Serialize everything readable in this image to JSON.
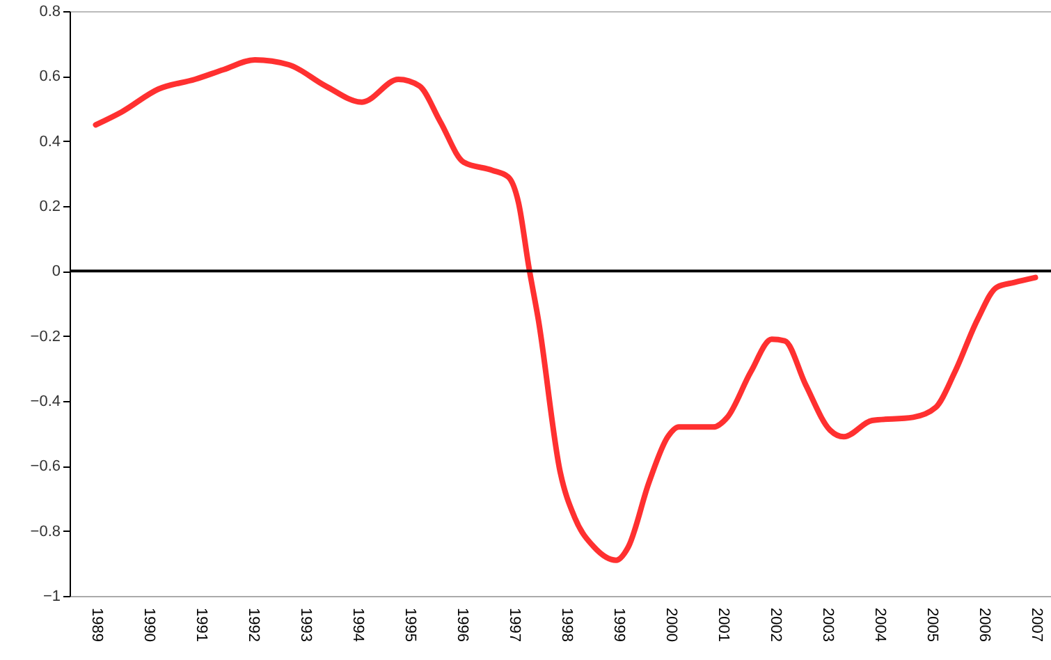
{
  "chart_data": {
    "type": "line",
    "x": [
      1989.0,
      1989.5,
      1990.2,
      1990.9,
      1991.45,
      1992.05,
      1992.7,
      1993.4,
      1994.1,
      1994.8,
      1995.2,
      1995.6,
      1996.05,
      1996.6,
      1996.9,
      1997.1,
      1997.3,
      1997.48,
      1997.9,
      1998.18,
      1998.55,
      1998.97,
      1999.2,
      1999.6,
      1999.96,
      2000.17,
      2000.83,
      2001.1,
      2001.55,
      2001.95,
      2002.2,
      2002.6,
      2003.07,
      2003.33,
      2003.87,
      2004.66,
      2005.09,
      2005.46,
      2005.89,
      2006.26,
      2006.6,
      2007.0
    ],
    "series": [
      {
        "color": "#ff3030",
        "values": [
          0.45,
          0.49,
          0.56,
          0.59,
          0.62,
          0.65,
          0.635,
          0.57,
          0.52,
          0.59,
          0.57,
          0.46,
          0.335,
          0.31,
          0.29,
          0.21,
          0.01,
          -0.15,
          -0.62,
          -0.76,
          -0.85,
          -0.89,
          -0.85,
          -0.65,
          -0.51,
          -0.48,
          -0.48,
          -0.45,
          -0.31,
          -0.21,
          -0.215,
          -0.35,
          -0.49,
          -0.51,
          -0.46,
          -0.45,
          -0.42,
          -0.31,
          -0.15,
          -0.05,
          -0.035,
          -0.02
        ]
      }
    ],
    "xlim": [
      1988.5,
      2007.3
    ],
    "xticks": [
      1989,
      1990,
      1991,
      1992,
      1993,
      1994,
      1995,
      1996,
      1997,
      1998,
      1999,
      2000,
      2001,
      2002,
      2003,
      2004,
      2005,
      2006,
      2007
    ],
    "ylim": [
      -1,
      0.8
    ],
    "yticks": [
      -1,
      -0.8,
      -0.6,
      -0.4,
      -0.2,
      0,
      0.2,
      0.4,
      0.6,
      0.8
    ],
    "ref_lines": [
      {
        "axis": "y",
        "value": 0,
        "color": "#000000"
      }
    ],
    "grid": false,
    "marker": "none",
    "line_style": "solid"
  }
}
